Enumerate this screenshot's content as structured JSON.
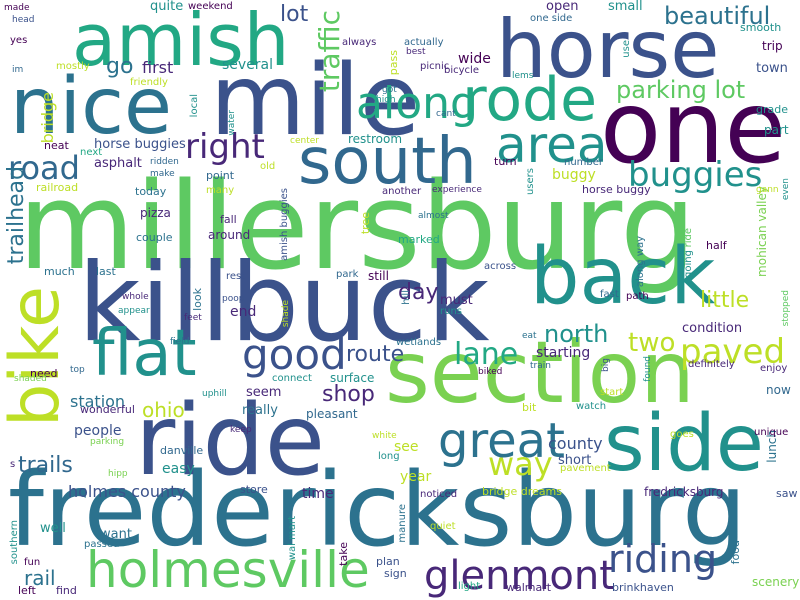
{
  "words": [
    {
      "text": "millersburg",
      "color": "#5ec962"
    },
    {
      "text": "fredericksburg",
      "color": "#2c728e"
    },
    {
      "text": "killbuck",
      "color": "#3b528b"
    },
    {
      "text": "section",
      "color": "#7ad151"
    },
    {
      "text": "ride",
      "color": "#3b528b"
    },
    {
      "text": "mile",
      "color": "#3b528b"
    },
    {
      "text": "horse",
      "color": "#3b528b"
    },
    {
      "text": "one",
      "color": "#440154"
    },
    {
      "text": "amish",
      "color": "#22a884"
    },
    {
      "text": "nice",
      "color": "#2c728e"
    },
    {
      "text": "side",
      "color": "#21918c"
    },
    {
      "text": "back",
      "color": "#21918c"
    },
    {
      "text": "bike",
      "color": "#bddf26"
    },
    {
      "text": "south",
      "color": "#31688e"
    },
    {
      "text": "flat",
      "color": "#21918c"
    },
    {
      "text": "rode",
      "color": "#22a884"
    },
    {
      "text": "holmesville",
      "color": "#5ec962"
    },
    {
      "text": "area",
      "color": "#21918c"
    },
    {
      "text": "good",
      "color": "#3b528b"
    },
    {
      "text": "great",
      "color": "#2c728e"
    },
    {
      "text": "along",
      "color": "#22a884"
    },
    {
      "text": "glenmont",
      "color": "#482878"
    },
    {
      "text": "riding",
      "color": "#3b528b"
    },
    {
      "text": "buggies",
      "color": "#21918c"
    },
    {
      "text": "road",
      "color": "#31688e"
    },
    {
      "text": "right",
      "color": "#482878"
    },
    {
      "text": "paved",
      "color": "#bddf26"
    },
    {
      "text": "traffic",
      "color": "#5ec962"
    },
    {
      "text": "beautiful",
      "color": "#2c728e"
    },
    {
      "text": "parking lot",
      "color": "#5ec962"
    },
    {
      "text": "lane",
      "color": "#22a884"
    },
    {
      "text": "way",
      "color": "#bddf26"
    },
    {
      "text": "trailhead",
      "color": "#2c728e"
    },
    {
      "text": "route",
      "color": "#3b528b"
    },
    {
      "text": "shop",
      "color": "#482878"
    },
    {
      "text": "north",
      "color": "#21918c"
    },
    {
      "text": "two",
      "color": "#bddf26"
    },
    {
      "text": "little",
      "color": "#bddf26"
    },
    {
      "text": "trails",
      "color": "#31688e"
    },
    {
      "text": "rail",
      "color": "#2c728e"
    },
    {
      "text": "ohio",
      "color": "#bddf26"
    },
    {
      "text": "day",
      "color": "#482878"
    },
    {
      "text": "lot",
      "color": "#3b528b"
    },
    {
      "text": "go",
      "color": "#2c728e"
    },
    {
      "text": "bridge",
      "color": "#bddf26"
    },
    {
      "text": "county",
      "color": "#3b528b"
    },
    {
      "text": "holmes county",
      "color": "#3b528b"
    },
    {
      "text": "station",
      "color": "#2c728e"
    },
    {
      "text": "first",
      "color": "#482878"
    },
    {
      "text": "several",
      "color": "#21918c"
    },
    {
      "text": "people",
      "color": "#3b528b"
    },
    {
      "text": "condition",
      "color": "#482878"
    },
    {
      "text": "starting",
      "color": "#482878"
    },
    {
      "text": "horse buggies",
      "color": "#3b528b"
    },
    {
      "text": "asphalt",
      "color": "#482878"
    },
    {
      "text": "buggy",
      "color": "#bddf26"
    },
    {
      "text": "easy",
      "color": "#21918c"
    },
    {
      "text": "time",
      "color": "#482878"
    },
    {
      "text": "year",
      "color": "#bddf26"
    },
    {
      "text": "short",
      "color": "#3b528b"
    },
    {
      "text": "end",
      "color": "#482878"
    },
    {
      "text": "see",
      "color": "#bddf26"
    },
    {
      "text": "wide",
      "color": "#440154"
    },
    {
      "text": "open",
      "color": "#482878"
    },
    {
      "text": "small",
      "color": "#21918c"
    },
    {
      "text": "quite",
      "color": "#21918c"
    },
    {
      "text": "want",
      "color": "#2c728e"
    },
    {
      "text": "must",
      "color": "#482878"
    },
    {
      "text": "seem",
      "color": "#482878"
    },
    {
      "text": "really",
      "color": "#2c728e"
    },
    {
      "text": "lunch",
      "color": "#2c728e"
    },
    {
      "text": "pizza",
      "color": "#482878"
    },
    {
      "text": "around",
      "color": "#482878"
    },
    {
      "text": "town",
      "color": "#3b528b"
    },
    {
      "text": "amish buggies",
      "color": "#3b528b"
    },
    {
      "text": "mohican valley",
      "color": "#7ad151"
    },
    {
      "text": "pleasant",
      "color": "#31688e"
    },
    {
      "text": "surface",
      "color": "#21918c"
    },
    {
      "text": "restroom",
      "color": "#21918c"
    },
    {
      "text": "fredricksburg",
      "color": "#482878"
    },
    {
      "text": "bridge dreams",
      "color": "#bddf26"
    },
    {
      "text": "scenery",
      "color": "#7ad151"
    },
    {
      "text": "brinkhaven",
      "color": "#3b528b"
    },
    {
      "text": "walmart",
      "color": "#482878"
    },
    {
      "text": "wal mart",
      "color": "#21918c"
    },
    {
      "text": "store",
      "color": "#3b528b"
    },
    {
      "text": "danville",
      "color": "#31688e"
    },
    {
      "text": "take",
      "color": "#440154"
    },
    {
      "text": "plan",
      "color": "#3b528b"
    },
    {
      "text": "sign",
      "color": "#3b528b"
    },
    {
      "text": "manure",
      "color": "#2c728e"
    },
    {
      "text": "noticed",
      "color": "#482878"
    },
    {
      "text": "quiet",
      "color": "#bddf26"
    },
    {
      "text": "light",
      "color": "#22a884"
    },
    {
      "text": "find",
      "color": "#482878"
    },
    {
      "text": "left",
      "color": "#440154"
    },
    {
      "text": "fun",
      "color": "#440154"
    },
    {
      "text": "well",
      "color": "#21918c"
    },
    {
      "text": "passed",
      "color": "#2c728e"
    },
    {
      "text": "southern",
      "color": "#21918c"
    },
    {
      "text": "railroad",
      "color": "#bddf26"
    },
    {
      "text": "neat",
      "color": "#440154"
    },
    {
      "text": "next",
      "color": "#22a884"
    },
    {
      "text": "today",
      "color": "#2c728e"
    },
    {
      "text": "couple",
      "color": "#2c728e"
    },
    {
      "text": "much",
      "color": "#2c728e"
    },
    {
      "text": "last",
      "color": "#2c728e"
    },
    {
      "text": "need",
      "color": "#440154"
    },
    {
      "text": "top",
      "color": "#31688e"
    },
    {
      "text": "wonderful",
      "color": "#482878"
    },
    {
      "text": "hipp",
      "color": "#7ad151"
    },
    {
      "text": "parking",
      "color": "#7ad151"
    },
    {
      "text": "shaded",
      "color": "#7ad151"
    },
    {
      "text": "made",
      "color": "#440154"
    },
    {
      "text": "head",
      "color": "#3b528b"
    },
    {
      "text": "yes",
      "color": "#440154"
    },
    {
      "text": "im",
      "color": "#31688e"
    },
    {
      "text": "mostly",
      "color": "#bddf26"
    },
    {
      "text": "friendly",
      "color": "#bddf26"
    },
    {
      "text": "weekend",
      "color": "#440154"
    },
    {
      "text": "local",
      "color": "#21918c"
    },
    {
      "text": "water",
      "color": "#21918c"
    },
    {
      "text": "ridden",
      "color": "#31688e"
    },
    {
      "text": "make",
      "color": "#31688e"
    },
    {
      "text": "point",
      "color": "#31688e"
    },
    {
      "text": "old",
      "color": "#bddf26"
    },
    {
      "text": "many",
      "color": "#bddf26"
    },
    {
      "text": "fall",
      "color": "#482878"
    },
    {
      "text": "whole",
      "color": "#482878"
    },
    {
      "text": "appear",
      "color": "#21918c"
    },
    {
      "text": "feet",
      "color": "#482878"
    },
    {
      "text": "poop",
      "color": "#3b528b"
    },
    {
      "text": "rest",
      "color": "#3b528b"
    },
    {
      "text": "shade",
      "color": "#bddf26"
    },
    {
      "text": "look",
      "color": "#2c728e"
    },
    {
      "text": "field",
      "color": "#2c728e"
    },
    {
      "text": "uphill",
      "color": "#21918c"
    },
    {
      "text": "connect",
      "color": "#21918c"
    },
    {
      "text": "keep",
      "color": "#482878"
    },
    {
      "text": "white",
      "color": "#bddf26"
    },
    {
      "text": "long",
      "color": "#21918c"
    },
    {
      "text": "wetlands",
      "color": "#2c728e"
    },
    {
      "text": "park",
      "color": "#31688e"
    },
    {
      "text": "still",
      "color": "#440154"
    },
    {
      "text": "tree",
      "color": "#bddf26"
    },
    {
      "text": "hill",
      "color": "#2c728e"
    },
    {
      "text": "runs",
      "color": "#21918c"
    },
    {
      "text": "marked",
      "color": "#22a884"
    },
    {
      "text": "almost",
      "color": "#2c728e"
    },
    {
      "text": "another",
      "color": "#482878"
    },
    {
      "text": "experience",
      "color": "#482878"
    },
    {
      "text": "users",
      "color": "#21918c"
    },
    {
      "text": "number",
      "color": "#31688e"
    },
    {
      "text": "horse buggy",
      "color": "#482878"
    },
    {
      "text": "along way",
      "color": "#2c728e"
    },
    {
      "text": "half",
      "color": "#440154"
    },
    {
      "text": "fast",
      "color": "#31688e"
    },
    {
      "text": "going",
      "color": "#21918c"
    },
    {
      "text": "ride",
      "color": "#5ec962"
    },
    {
      "text": "path",
      "color": "#440154"
    },
    {
      "text": "gann",
      "color": "#bddf26"
    },
    {
      "text": "even",
      "color": "#21918c"
    },
    {
      "text": "stopped",
      "color": "#5ec962"
    },
    {
      "text": "grade",
      "color": "#21918c"
    },
    {
      "text": "part",
      "color": "#21918c"
    },
    {
      "text": "trip",
      "color": "#440154"
    },
    {
      "text": "smooth",
      "color": "#21918c"
    },
    {
      "text": "use",
      "color": "#21918c"
    },
    {
      "text": "one side",
      "color": "#31688e"
    },
    {
      "text": "lems",
      "color": "#21918c"
    },
    {
      "text": "best",
      "color": "#482878"
    },
    {
      "text": "picnic",
      "color": "#482878"
    },
    {
      "text": "bicycle",
      "color": "#482878"
    },
    {
      "text": "actually",
      "color": "#31688e"
    },
    {
      "text": "always",
      "color": "#482878"
    },
    {
      "text": "pass",
      "color": "#bddf26"
    },
    {
      "text": "got",
      "color": "#2c728e"
    },
    {
      "text": "high",
      "color": "#21918c"
    },
    {
      "text": "cant",
      "color": "#31688e"
    },
    {
      "text": "center",
      "color": "#bddf26"
    },
    {
      "text": "turn",
      "color": "#440154"
    },
    {
      "text": "across",
      "color": "#3b528b"
    },
    {
      "text": "eat",
      "color": "#2c728e"
    },
    {
      "text": "train",
      "color": "#31688e"
    },
    {
      "text": "biked",
      "color": "#440154"
    },
    {
      "text": "big",
      "color": "#3b528b"
    },
    {
      "text": "found",
      "color": "#21918c"
    },
    {
      "text": "definitely",
      "color": "#482878"
    },
    {
      "text": "enjoy",
      "color": "#482878"
    },
    {
      "text": "start",
      "color": "#bddf26"
    },
    {
      "text": "bit",
      "color": "#bddf26"
    },
    {
      "text": "watch",
      "color": "#21918c"
    },
    {
      "text": "now",
      "color": "#31688e"
    },
    {
      "text": "unique",
      "color": "#440154"
    },
    {
      "text": "goes",
      "color": "#bddf26"
    },
    {
      "text": "saw",
      "color": "#3b528b"
    },
    {
      "text": "food",
      "color": "#2c728e"
    },
    {
      "text": "pavement",
      "color": "#bddf26"
    },
    {
      "text": "s",
      "color": "#482878"
    }
  ]
}
